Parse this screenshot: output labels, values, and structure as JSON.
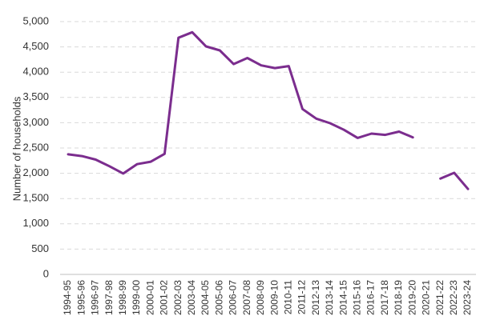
{
  "chart_data": {
    "type": "line",
    "title": "",
    "xlabel": "",
    "ylabel": "Number of households",
    "ylim": [
      0,
      5000
    ],
    "yticks": [
      0,
      500,
      1000,
      1500,
      2000,
      2500,
      3000,
      3500,
      4000,
      4500,
      5000
    ],
    "ytick_labels": [
      "0",
      "500",
      "1,000",
      "1,500",
      "2,000",
      "2,500",
      "3,000",
      "3,500",
      "4,000",
      "4,500",
      "5,000"
    ],
    "grid": true,
    "legend": "none",
    "categories": [
      "1994-95",
      "1995-96",
      "1996-97",
      "1997-98",
      "1998-99",
      "1999-00",
      "2000-01",
      "2001-02",
      "2002-03",
      "2003-04",
      "2004-05",
      "2005-06",
      "2006-07",
      "2007-08",
      "2008-09",
      "2009-10",
      "2010-11",
      "2011-12",
      "2012-13",
      "2013-14",
      "2014-15",
      "2015-16",
      "2016-17",
      "2017-18",
      "2018-19",
      "2019-20",
      "2020-21",
      "2021-22",
      "2022-23",
      "2023-24"
    ],
    "series": [
      {
        "color": "#7b2d8e",
        "values": [
          2375,
          2340,
          2270,
          2140,
          1995,
          2180,
          2230,
          2385,
          4680,
          4790,
          4510,
          4430,
          4160,
          4280,
          4135,
          4080,
          4120,
          3270,
          3080,
          2990,
          2860,
          2700,
          2785,
          2760,
          2825,
          2710,
          null,
          1895,
          2010,
          1690
        ]
      }
    ]
  }
}
